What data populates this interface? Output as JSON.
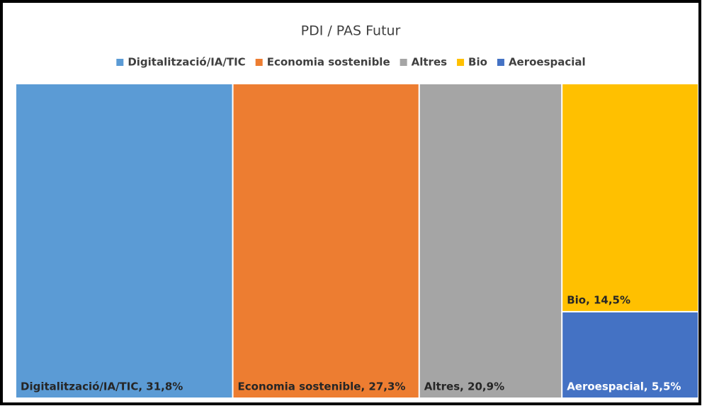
{
  "chart_data": {
    "type": "treemap",
    "title": "PDI / PAS Futur",
    "categories": [
      "Digitalització/IA/TIC",
      "Economia sostenible",
      "Altres",
      "Bio",
      "Aeroespacial"
    ],
    "values": [
      31.8,
      27.3,
      20.9,
      14.5,
      5.5
    ],
    "value_labels": [
      "Digitalització/IA/TIC, 31,8%",
      "Economia sostenible, 27,3%",
      "Altres, 20,9%",
      "Bio, 14,5%",
      "Aeroespacial, 5,5%"
    ],
    "colors": [
      "#5b9bd5",
      "#ed7d31",
      "#a5a5a5",
      "#ffc000",
      "#4472c4"
    ],
    "legend": "top"
  }
}
